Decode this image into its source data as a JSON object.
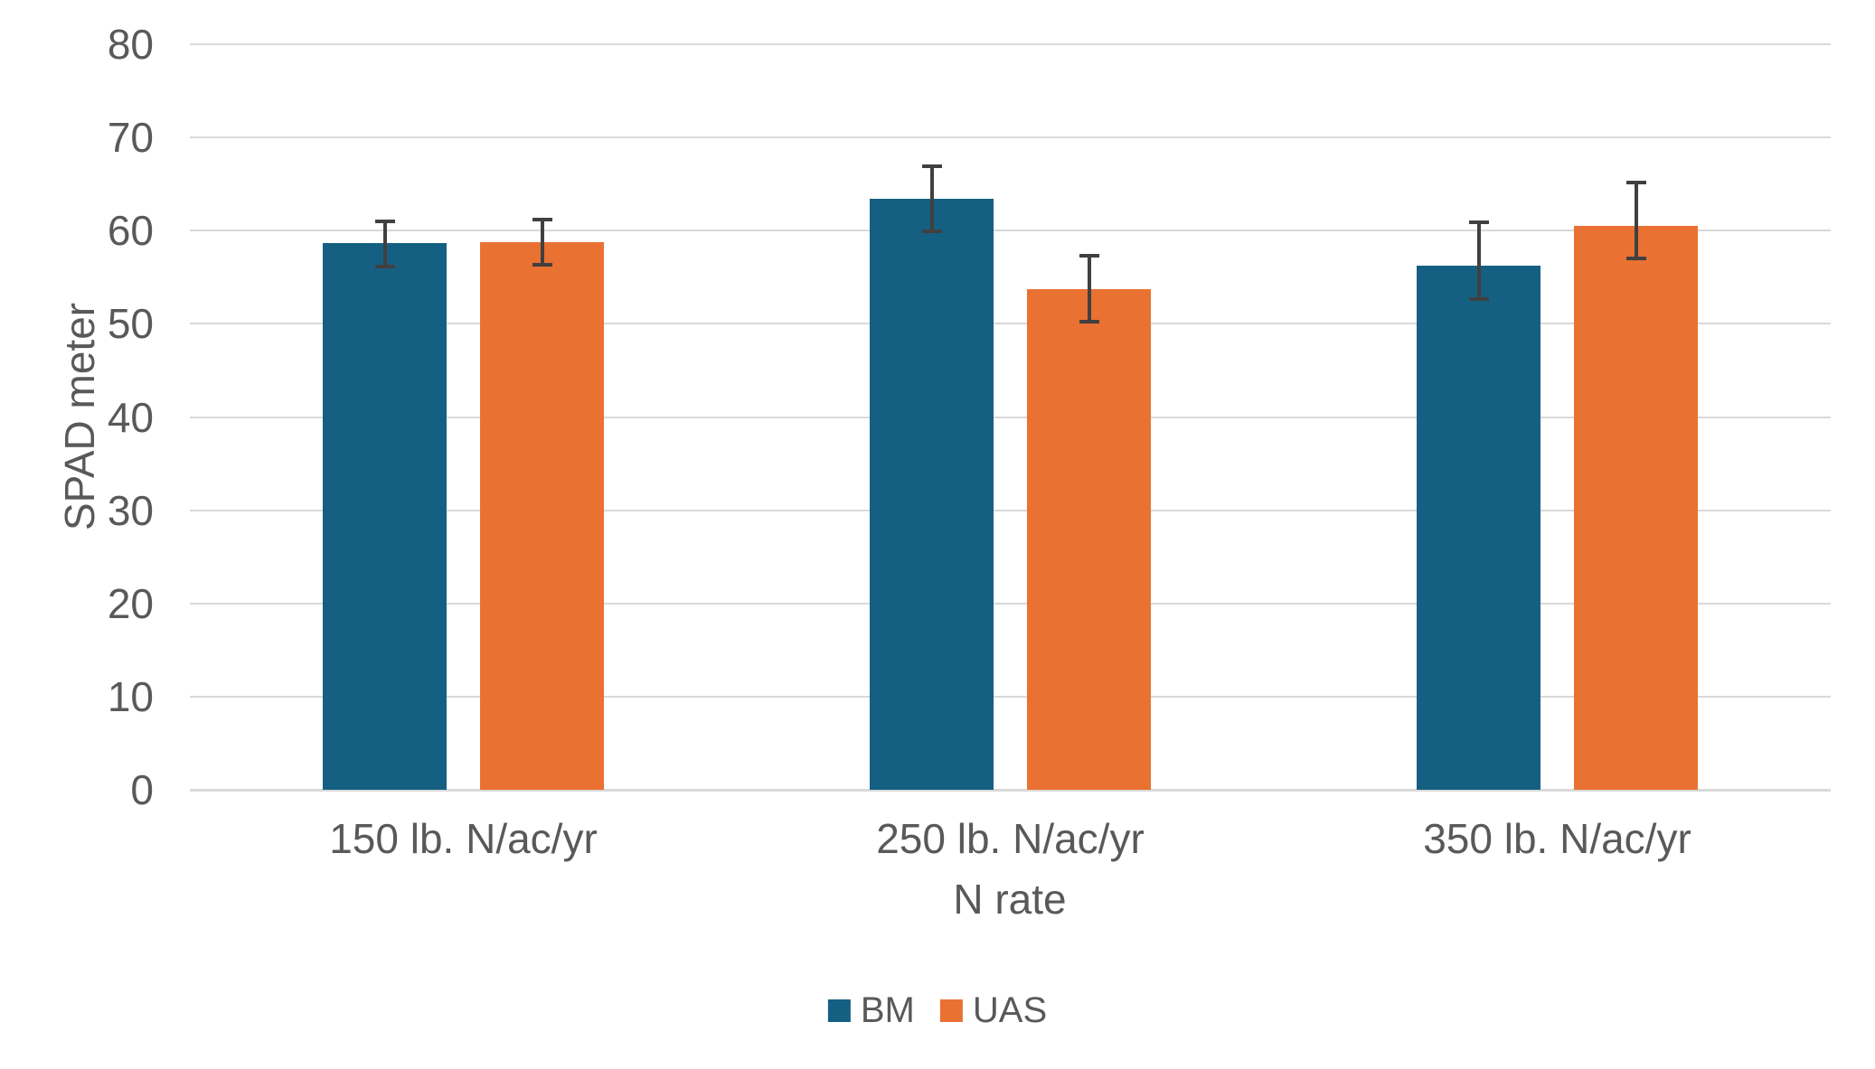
{
  "chart_data": {
    "type": "bar",
    "title": "",
    "xlabel": "N rate",
    "ylabel": "SPAD meter",
    "ylim": [
      0,
      80
    ],
    "yticks": [
      0,
      10,
      20,
      30,
      40,
      50,
      60,
      70,
      80
    ],
    "grid": true,
    "legend_position": "bottom",
    "categories": [
      "150 lb. N/ac/yr",
      "250 lb. N/ac/yr",
      "350 lb. N/ac/yr"
    ],
    "series": [
      {
        "name": "BM",
        "color": "#156082",
        "values": [
          58.7,
          63.4,
          56.2
        ],
        "error_low": [
          56.1,
          59.9,
          52.7
        ],
        "error_high": [
          61.0,
          66.9,
          60.9
        ]
      },
      {
        "name": "UAS",
        "color": "#E97132",
        "values": [
          58.8,
          53.7,
          60.5
        ],
        "error_low": [
          56.3,
          50.2,
          57.0
        ],
        "error_high": [
          61.2,
          57.3,
          65.2
        ]
      }
    ],
    "colors": {
      "error_bar": "#404040",
      "gridline": "#D9D9D9",
      "axis_line": "#D9D9D9",
      "text": "#595959"
    }
  }
}
